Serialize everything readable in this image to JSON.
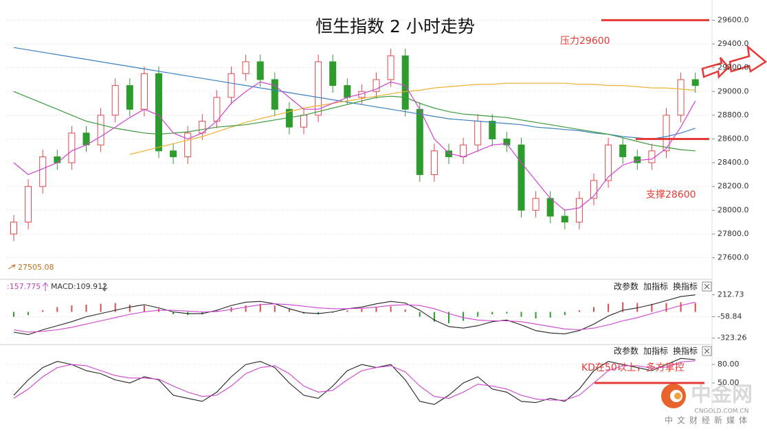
{
  "chart_data": {
    "type": "candlestick",
    "title": "恒生指数 2 小时走势",
    "ylim": [
      27430,
      29770
    ],
    "yticks": [
      {
        "value": 27600,
        "label": "27600.0"
      },
      {
        "value": 27800,
        "label": "27800.0"
      },
      {
        "value": 28000,
        "label": "28000.0"
      },
      {
        "value": 28200,
        "label": "28200.0"
      },
      {
        "value": 28400,
        "label": "28400.0"
      },
      {
        "value": 28600,
        "label": "28600.0"
      },
      {
        "value": 28800,
        "label": "28800.0"
      },
      {
        "value": 29000,
        "label": "29000.0"
      },
      {
        "value": 29200,
        "label": "29200.0"
      },
      {
        "value": 29400,
        "label": "29400.0"
      },
      {
        "value": 29600,
        "label": "29600.0"
      }
    ],
    "grid": true,
    "candles": {
      "up_color": "#e0474c",
      "down_color": "#2e9b2e",
      "open": [
        27800,
        27900,
        28200,
        28450,
        28400,
        28650,
        28550,
        28800,
        29050,
        28850,
        29150,
        28500,
        28450,
        28650,
        28750,
        28950,
        29150,
        29250,
        29100,
        28850,
        28700,
        28800,
        29250,
        29050,
        28950,
        29000,
        29100,
        29300,
        28850,
        28300,
        28500,
        28450,
        28550,
        28750,
        28600,
        28550,
        28000,
        28100,
        27950,
        27900,
        28100,
        28250,
        28550,
        28450,
        28400,
        28500,
        28800,
        29100
      ],
      "high": [
        27960,
        28260,
        28510,
        28510,
        28710,
        28710,
        28860,
        29110,
        29110,
        29210,
        29210,
        28560,
        28710,
        28810,
        29010,
        29210,
        29310,
        29310,
        29160,
        28910,
        28860,
        29310,
        29310,
        29110,
        29060,
        29160,
        29360,
        29360,
        28910,
        28560,
        28560,
        28610,
        28810,
        28810,
        28660,
        28610,
        28160,
        28160,
        28010,
        28160,
        28310,
        28610,
        28610,
        28510,
        28560,
        28860,
        29160,
        29160
      ],
      "low": [
        27740,
        27840,
        28140,
        28340,
        28340,
        28490,
        28490,
        28740,
        28790,
        28790,
        28440,
        28390,
        28390,
        28590,
        28690,
        28890,
        29090,
        29040,
        28790,
        28640,
        28640,
        28740,
        28990,
        28890,
        28890,
        28940,
        29040,
        28790,
        28240,
        28240,
        28390,
        28390,
        28490,
        28540,
        28490,
        27940,
        27940,
        27890,
        27840,
        27840,
        28040,
        28190,
        28390,
        28340,
        28340,
        28440,
        28740,
        28990
      ],
      "close": [
        27900,
        28200,
        28450,
        28400,
        28650,
        28550,
        28800,
        29050,
        28850,
        29150,
        28500,
        28450,
        28650,
        28750,
        28950,
        29150,
        29250,
        29100,
        28850,
        28700,
        28800,
        29250,
        29050,
        28950,
        29000,
        29100,
        29300,
        28850,
        28300,
        28500,
        28450,
        28550,
        28750,
        28600,
        28550,
        28000,
        28100,
        27950,
        27900,
        28100,
        28250,
        28550,
        28450,
        28400,
        28500,
        28800,
        29100,
        29050
      ]
    },
    "lines": [
      {
        "color": "#3a7fc4",
        "values": [
          29370,
          29350,
          29330,
          29310,
          29290,
          29270,
          29250,
          29230,
          29210,
          29190,
          29170,
          29150,
          29130,
          29110,
          29090,
          29070,
          29050,
          29030,
          29010,
          28990,
          28970,
          28950,
          28930,
          28910,
          28890,
          28870,
          28850,
          28830,
          28810,
          28790,
          28770,
          28760,
          28750,
          28740,
          28730,
          28720,
          28700,
          28690,
          28680,
          28670,
          28650,
          28640,
          28620,
          28610,
          28600,
          28620,
          28650,
          28690
        ]
      },
      {
        "color": "#f0b030",
        "values": [
          null,
          null,
          null,
          null,
          null,
          null,
          null,
          null,
          28470,
          28500,
          28530,
          28560,
          28590,
          28620,
          28660,
          28700,
          28740,
          28770,
          28800,
          28830,
          28860,
          28880,
          28900,
          28920,
          28940,
          28960,
          28980,
          29000,
          29010,
          29030,
          29040,
          29050,
          29060,
          29060,
          29070,
          29070,
          29070,
          29070,
          29070,
          29060,
          29060,
          29050,
          29050,
          29040,
          29030,
          29030,
          29020,
          29010
        ]
      },
      {
        "color": "#3a9a3a",
        "values": [
          29000,
          28950,
          28900,
          28850,
          28800,
          28750,
          28720,
          28690,
          28670,
          28650,
          28640,
          28650,
          28660,
          28680,
          28700,
          28710,
          28720,
          28740,
          28760,
          28780,
          28800,
          28830,
          28860,
          28890,
          28920,
          28950,
          28960,
          28950,
          28900,
          28860,
          28830,
          28810,
          28800,
          28790,
          28780,
          28760,
          28740,
          28720,
          28700,
          28680,
          28660,
          28640,
          28610,
          28580,
          28550,
          28530,
          28510,
          28500
        ]
      },
      {
        "color": "#d040d0",
        "values": [
          28400,
          28300,
          28350,
          28400,
          28500,
          28550,
          28620,
          28700,
          28780,
          28850,
          28800,
          28650,
          28600,
          28650,
          28750,
          28900,
          29000,
          29080,
          29050,
          28950,
          28850,
          28850,
          28900,
          28950,
          28980,
          29020,
          29080,
          29050,
          28850,
          28600,
          28480,
          28450,
          28500,
          28550,
          28560,
          28400,
          28250,
          28100,
          28000,
          28020,
          28120,
          28280,
          28380,
          28420,
          28430,
          28520,
          28700,
          28920
        ]
      }
    ],
    "resistance": {
      "text": "压力29600",
      "value": 29600,
      "color": "#e53935"
    },
    "support": {
      "text": "支撑28600",
      "value": 28600,
      "color": "#e53935"
    },
    "low_mark": 27505.08,
    "macd": {
      "header": [
        ":157.775",
        "MACD:109.912"
      ],
      "buttons": [
        "改参数",
        "加指标",
        "换指标"
      ],
      "ylim": [
        -360,
        250
      ],
      "yticks": [
        212.73,
        -58.84,
        -323.26
      ],
      "histogram": [
        -60,
        -40,
        20,
        60,
        80,
        90,
        100,
        110,
        90,
        80,
        40,
        -30,
        -40,
        -30,
        20,
        60,
        80,
        100,
        80,
        40,
        -20,
        -30,
        -10,
        20,
        40,
        60,
        70,
        30,
        -60,
        -120,
        -140,
        -110,
        -60,
        -30,
        -20,
        -60,
        -80,
        -70,
        -40,
        20,
        60,
        100,
        120,
        110,
        100,
        110,
        120,
        110
      ],
      "series": [
        {
          "color": "#222222",
          "values": [
            -250,
            -280,
            -220,
            -170,
            -120,
            -60,
            -20,
            20,
            60,
            90,
            50,
            0,
            -20,
            -20,
            20,
            80,
            120,
            130,
            100,
            40,
            -10,
            -20,
            0,
            40,
            60,
            100,
            130,
            110,
            20,
            -100,
            -180,
            -200,
            -170,
            -120,
            -100,
            -160,
            -230,
            -260,
            -270,
            -230,
            -150,
            -50,
            20,
            50,
            90,
            140,
            190,
            210
          ]
        },
        {
          "color": "#d040d0",
          "values": [
            -220,
            -250,
            -240,
            -220,
            -190,
            -150,
            -110,
            -70,
            -30,
            0,
            20,
            20,
            10,
            0,
            5,
            30,
            60,
            90,
            100,
            90,
            70,
            50,
            40,
            40,
            45,
            60,
            80,
            90,
            80,
            40,
            -20,
            -70,
            -100,
            -110,
            -110,
            -120,
            -150,
            -180,
            -210,
            -220,
            -200,
            -160,
            -110,
            -70,
            -20,
            30,
            80,
            120
          ]
        }
      ]
    },
    "kd": {
      "buttons": [
        "改参数",
        "加指标",
        "换指标"
      ],
      "ylim": [
        12,
        98
      ],
      "yticks": [
        {
          "value": 80,
          "label": "80.00"
        },
        {
          "value": 50,
          "label": "50.00"
        }
      ],
      "series": [
        {
          "color": "#222222",
          "values": [
            30,
            55,
            75,
            85,
            80,
            70,
            65,
            55,
            50,
            60,
            55,
            30,
            25,
            20,
            35,
            60,
            80,
            85,
            75,
            50,
            30,
            25,
            45,
            70,
            80,
            75,
            80,
            55,
            20,
            15,
            30,
            50,
            60,
            40,
            35,
            20,
            18,
            25,
            20,
            40,
            70,
            85,
            80,
            75,
            70,
            80,
            90,
            88
          ]
        },
        {
          "color": "#d040d0",
          "values": [
            25,
            40,
            60,
            75,
            80,
            78,
            70,
            62,
            58,
            58,
            56,
            45,
            35,
            28,
            30,
            45,
            65,
            75,
            78,
            65,
            45,
            35,
            38,
            55,
            70,
            75,
            78,
            68,
            45,
            28,
            25,
            35,
            48,
            45,
            40,
            30,
            24,
            22,
            22,
            30,
            50,
            70,
            78,
            78,
            74,
            76,
            84,
            86
          ]
        }
      ],
      "annotation": {
        "text": "KD在50以上，多方掌控",
        "value": 50,
        "color": "#e53935"
      }
    },
    "watermark": {
      "name": "中金网",
      "site": "CNGOLD.COM.CN",
      "slogan": "中文财经新媒体"
    }
  }
}
